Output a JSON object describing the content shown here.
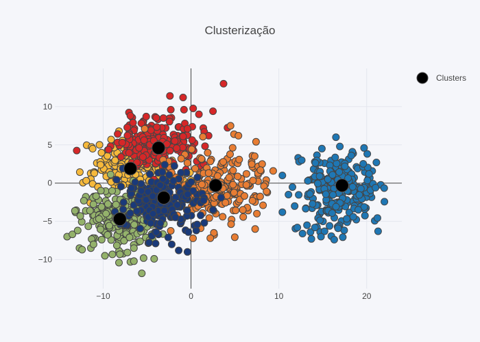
{
  "chart_data": {
    "type": "scatter",
    "title": "Clusterização",
    "xlabel": "",
    "ylabel": "",
    "xlim": [
      -15.5,
      24
    ],
    "ylim": [
      -13.8,
      15
    ],
    "xticks": [
      -10,
      0,
      10,
      20
    ],
    "yticks": [
      -10,
      -5,
      0,
      5,
      10
    ],
    "xtick_labels": [
      "−10",
      "0",
      "10",
      "20"
    ],
    "ytick_labels": [
      "−10",
      "−5",
      "0",
      "5",
      "10"
    ],
    "grid": true,
    "zero_lines": true,
    "legend_position": "top-right",
    "series": [
      {
        "color": "#d62728",
        "center": [
          -4,
          5
        ],
        "spread": [
          2.3,
          1.8
        ],
        "count": 200,
        "points": [
          [
            -2.4,
            11.4
          ],
          [
            -0.9,
            11.2
          ],
          [
            3.7,
            13.0
          ],
          [
            -2.3,
            9.6
          ],
          [
            -0.8,
            9.6
          ],
          [
            2.5,
            9.4
          ],
          [
            -6.9,
            8.8
          ],
          [
            -5.1,
            8.7
          ],
          [
            -0.7,
            7.8
          ],
          [
            -0.4,
            7.1
          ],
          [
            1.4,
            7.2
          ],
          [
            -0.9,
            6.1
          ],
          [
            1.5,
            6.7
          ],
          [
            2.0,
            6.2
          ]
        ]
      },
      {
        "color": "#f6b93b",
        "center": [
          -7,
          2
        ],
        "spread": [
          2.3,
          1.7
        ],
        "count": 170,
        "points": [
          [
            -11.2,
            4.5
          ],
          [
            -11.0,
            1.3
          ],
          [
            -11.2,
            -0.1
          ],
          [
            -10.6,
            -0.5
          ],
          [
            -9.1,
            5.7
          ],
          [
            -8.2,
            6.8
          ],
          [
            -10.3,
            2.4
          ]
        ]
      },
      {
        "color": "#e87d33",
        "center": [
          3,
          -0.5
        ],
        "spread": [
          2.8,
          2.4
        ],
        "count": 210,
        "points": [
          [
            7.4,
            5.4
          ],
          [
            8.1,
            2.5
          ],
          [
            7.9,
            1.7
          ],
          [
            4.9,
            6.4
          ],
          [
            5.4,
            6.2
          ],
          [
            4.5,
            7.5
          ],
          [
            8.3,
            -0.4
          ],
          [
            8.6,
            -1.1
          ],
          [
            7.0,
            -2.3
          ],
          [
            8.2,
            -2.9
          ],
          [
            6.4,
            -3.2
          ],
          [
            7.3,
            -6.0
          ],
          [
            5.9,
            -3.5
          ],
          [
            2.6,
            -6.5
          ],
          [
            2.2,
            -7.2
          ],
          [
            1.1,
            -5.9
          ],
          [
            3.6,
            -4.4
          ]
        ]
      },
      {
        "color": "#94b26b",
        "center": [
          -8,
          -4.5
        ],
        "spread": [
          2.2,
          2.0
        ],
        "count": 200,
        "points": [
          [
            -14.1,
            -7.0
          ],
          [
            -13.5,
            -6.7
          ],
          [
            -12.9,
            -6.2
          ],
          [
            -12.7,
            -8.5
          ],
          [
            -12.4,
            -8.7
          ],
          [
            -12.2,
            -2.3
          ],
          [
            -11.4,
            -8.5
          ],
          [
            -11.1,
            -8.0
          ],
          [
            -9.8,
            -9.5
          ],
          [
            -8.2,
            -10.4
          ],
          [
            -8.1,
            -9.3
          ],
          [
            -6.9,
            -10.3
          ],
          [
            -6.5,
            -10.2
          ],
          [
            -5.4,
            -9.8
          ],
          [
            -5.6,
            -11.8
          ],
          [
            -4.2,
            -9.9
          ],
          [
            -6.5,
            -8.5
          ],
          [
            -5.8,
            -7.6
          ],
          [
            -7.0,
            -7.1
          ],
          [
            -11.5,
            -3.6
          ],
          [
            -12.6,
            -4.3
          ],
          [
            -10.8,
            -1.7
          ]
        ]
      },
      {
        "color": "#1a3a7a",
        "center": [
          -3.3,
          -2.4
        ],
        "spread": [
          2.0,
          1.9
        ],
        "count": 210,
        "points": [
          [
            -0.4,
            -9.0
          ],
          [
            -1.4,
            -8.8
          ],
          [
            -2.2,
            -8.0
          ],
          [
            -2.6,
            -7.1
          ],
          [
            0.6,
            -6.2
          ],
          [
            0.7,
            -5.4
          ],
          [
            -0.3,
            -6.4
          ]
        ]
      },
      {
        "color": "#1f77b4",
        "center": [
          17.2,
          -0.8
        ],
        "spread": [
          2.0,
          2.6
        ],
        "count": 260,
        "points": [
          [
            10.4,
            1.0
          ],
          [
            11.1,
            -1.5
          ],
          [
            10.4,
            -3.8
          ],
          [
            11.8,
            -3.0
          ],
          [
            12.2,
            3.3
          ],
          [
            12.3,
            2.8
          ],
          [
            12.6,
            3.0
          ],
          [
            13.3,
            0.3
          ],
          [
            12.1,
            -5.8
          ],
          [
            12.7,
            -6.6
          ],
          [
            13.2,
            -5.5
          ],
          [
            13.6,
            -6.4
          ],
          [
            14.1,
            -5.8
          ],
          [
            14.7,
            -6.4
          ],
          [
            15.2,
            -6.3
          ],
          [
            13.7,
            -7.3
          ],
          [
            14.8,
            -7.0
          ],
          [
            16.3,
            -7.4
          ],
          [
            16.5,
            6.0
          ],
          [
            21.3,
            -6.3
          ],
          [
            21.0,
            -0.6
          ],
          [
            21.1,
            2.7
          ],
          [
            19.7,
            4.6
          ]
        ]
      }
    ],
    "centroids": {
      "name": "Clusters",
      "color": "#000000",
      "points": [
        [
          -3.7,
          4.6
        ],
        [
          -6.9,
          1.9
        ],
        [
          2.8,
          -0.3
        ],
        [
          -8.1,
          -4.7
        ],
        [
          -3.1,
          -1.9
        ],
        [
          17.2,
          -0.3
        ]
      ]
    }
  }
}
